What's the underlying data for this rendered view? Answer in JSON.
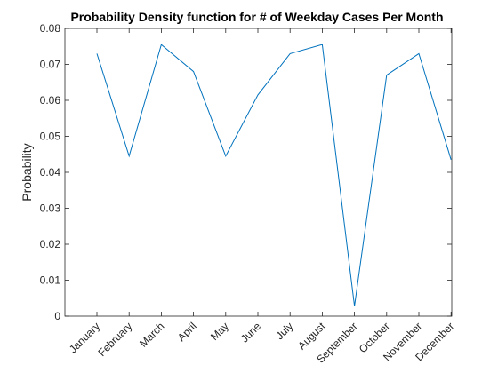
{
  "chart_data": {
    "type": "line",
    "title": "Probability Density function for # of Weekday Cases Per Month",
    "xlabel": "",
    "ylabel": "Probability",
    "categories": [
      "January",
      "February",
      "March",
      "April",
      "May",
      "June",
      "July",
      "August",
      "September",
      "October",
      "November",
      "December"
    ],
    "values": [
      0.073,
      0.0445,
      0.0755,
      0.068,
      0.0445,
      0.0615,
      0.073,
      0.0755,
      0.0028,
      0.067,
      0.073,
      0.0435
    ],
    "ylim": [
      0,
      0.08
    ],
    "yticks": [
      "0",
      "0.01",
      "0.02",
      "0.03",
      "0.04",
      "0.05",
      "0.06",
      "0.07",
      "0.08"
    ],
    "grid": false,
    "legend": "none",
    "line_color": "#0072BD"
  }
}
